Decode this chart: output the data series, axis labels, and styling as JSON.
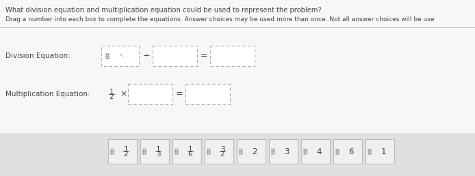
{
  "title_line1": "What division equation and multiplication equation could be used to represent the problem?",
  "title_line2": "Drag a number into each box to complete the equations. Answer choices may be used more than once. Not all answer choices will be use",
  "bg_color": "#ebebeb",
  "panel_color": "#f7f7f7",
  "bottom_color": "#e0e0e0",
  "division_label": "Division Equation:",
  "multiplication_label": "Multiplication Equation:",
  "div_symbol": "÷",
  "eq_symbol": "=",
  "times_symbol": "×",
  "answer_choices": [
    {
      "label": "1/2",
      "type": "fraction",
      "num": "1",
      "den": "2"
    },
    {
      "label": "1/3",
      "type": "fraction",
      "num": "1",
      "den": "3"
    },
    {
      "label": "1/6",
      "type": "fraction",
      "num": "1",
      "den": "6"
    },
    {
      "label": "3/2",
      "type": "fraction",
      "num": "3",
      "den": "2"
    },
    {
      "label": "2",
      "type": "integer"
    },
    {
      "label": "3",
      "type": "integer"
    },
    {
      "label": "4",
      "type": "integer"
    },
    {
      "label": "6",
      "type": "integer"
    },
    {
      "label": "1",
      "type": "integer"
    }
  ],
  "text_color": "#444444",
  "text_color2": "#555555",
  "answer_box_color": "#f0f0f0",
  "answer_box_border": "#bbbbbb",
  "dashed_color": "#aaaaaa",
  "separator_color": "#cccccc"
}
